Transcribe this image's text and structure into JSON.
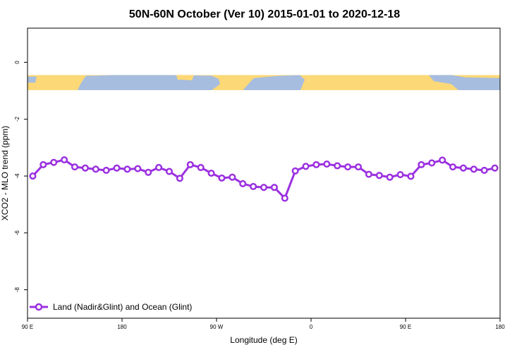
{
  "chart_data": {
    "type": "line",
    "title": "50N-60N October (Ver 10)   2015-01-01 to 2020-12-18",
    "xlabel": "Longitude (deg E)",
    "ylabel": "XCO2 - MLO trend (ppm)",
    "xlim": [
      90,
      540
    ],
    "ylim": [
      -9,
      1.2
    ],
    "x_ticks": [
      {
        "value": 90,
        "label": "90 E"
      },
      {
        "value": 180,
        "label": "180"
      },
      {
        "value": 270,
        "label": "90 W"
      },
      {
        "value": 360,
        "label": "0"
      },
      {
        "value": 450,
        "label": "90 E"
      },
      {
        "value": 540,
        "label": "180"
      }
    ],
    "y_ticks": [
      {
        "value": 0,
        "label": "0"
      },
      {
        "value": -2,
        "label": "-2"
      },
      {
        "value": -4,
        "label": "-4"
      },
      {
        "value": -6,
        "label": "-6"
      },
      {
        "value": -8,
        "label": "-8"
      }
    ],
    "colors": {
      "series": "#9b30e0",
      "land": "#fdd876",
      "ocean": "#a6bddf"
    },
    "map_band": {
      "y_top": -0.45,
      "y_bottom": -0.98
    },
    "series": [
      {
        "name": "Land (Nadir&Glint) and Ocean (Glint)",
        "x": [
          95,
          105,
          115,
          125,
          135,
          145,
          155,
          165,
          175,
          185,
          195,
          205,
          215,
          225,
          235,
          245,
          255,
          265,
          275,
          285,
          295,
          305,
          315,
          325,
          335,
          345,
          355,
          365,
          375,
          385,
          395,
          405,
          415,
          425,
          435,
          445,
          455,
          465,
          475,
          485,
          495,
          505,
          515,
          525,
          535
        ],
        "y": [
          -4.0,
          -3.6,
          -3.52,
          -3.43,
          -3.68,
          -3.72,
          -3.76,
          -3.8,
          -3.72,
          -3.76,
          -3.74,
          -3.87,
          -3.7,
          -3.84,
          -4.08,
          -3.6,
          -3.7,
          -3.9,
          -4.07,
          -4.04,
          -4.27,
          -4.37,
          -4.4,
          -4.4,
          -4.78,
          -3.82,
          -3.66,
          -3.6,
          -3.58,
          -3.64,
          -3.68,
          -3.68,
          -3.94,
          -3.98,
          -4.04,
          -3.95,
          -4.01,
          -3.6,
          -3.54,
          -3.44,
          -3.68,
          -3.72,
          -3.76,
          -3.8,
          -3.72
        ]
      }
    ]
  }
}
